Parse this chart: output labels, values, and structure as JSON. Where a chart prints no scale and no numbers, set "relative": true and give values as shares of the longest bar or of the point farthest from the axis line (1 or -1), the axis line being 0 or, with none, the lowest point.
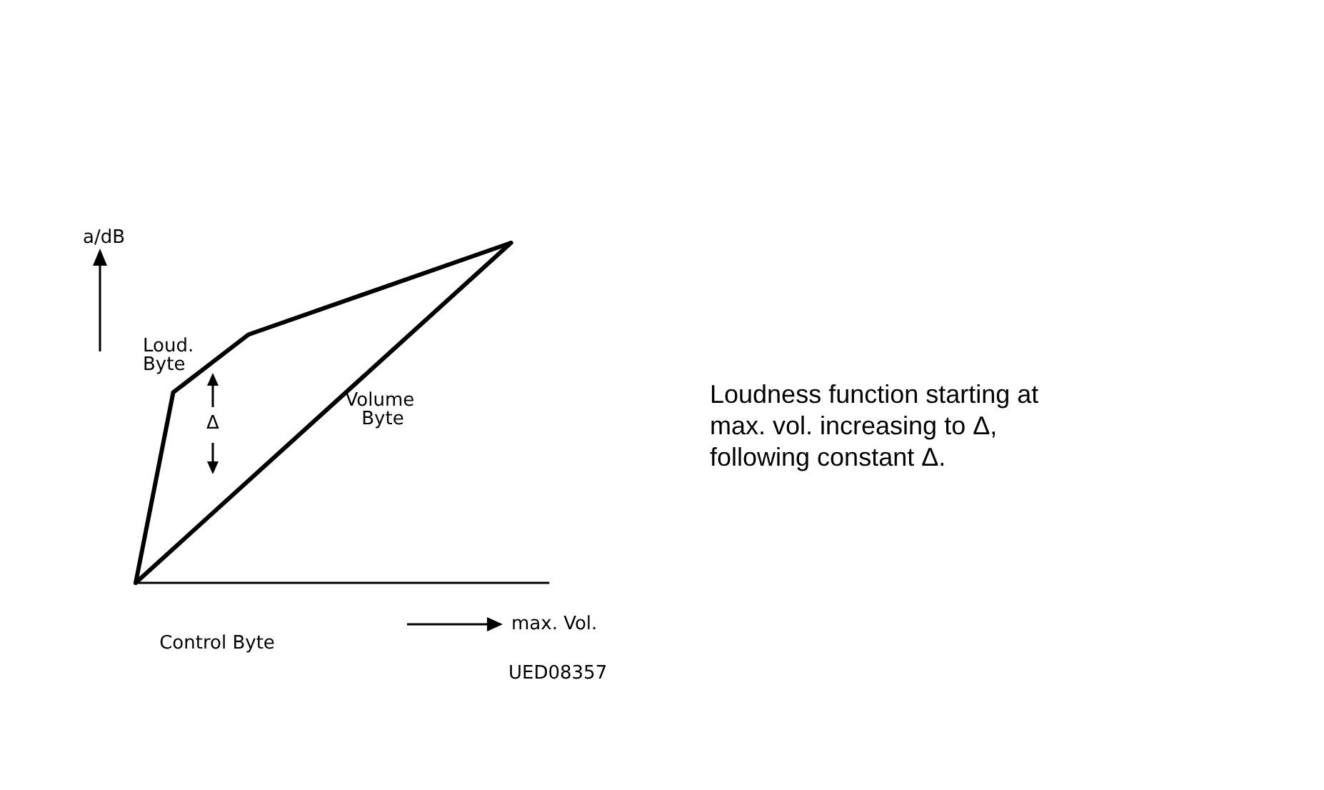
{
  "chart_data": {
    "type": "line",
    "relative": true,
    "xlabel": "Control Byte",
    "ylabel": "a/dB",
    "categories": [
      null,
      null,
      null,
      null,
      null,
      null,
      null,
      null,
      null,
      null,
      null,
      null
    ],
    "grid": false,
    "legend": false,
    "marker": "none",
    "line_style": "solid",
    "series": [
      {
        "name": "Loud. Byte",
        "color": "#000000",
        "values": [
          0,
          0.56,
          null,
          0.73,
          null,
          null,
          null,
          null,
          null,
          null,
          1,
          null
        ]
      },
      {
        "name": "Volume Byte",
        "color": "#000000",
        "values": [
          0,
          null,
          null,
          null,
          null,
          null,
          null,
          null,
          null,
          null,
          1,
          null
        ]
      }
    ],
    "annotations": [
      "Δ",
      "max. Vol.",
      "UED08357",
      "Loudness function starting at max. vol. increasing to Δ, following constant Δ."
    ]
  }
}
